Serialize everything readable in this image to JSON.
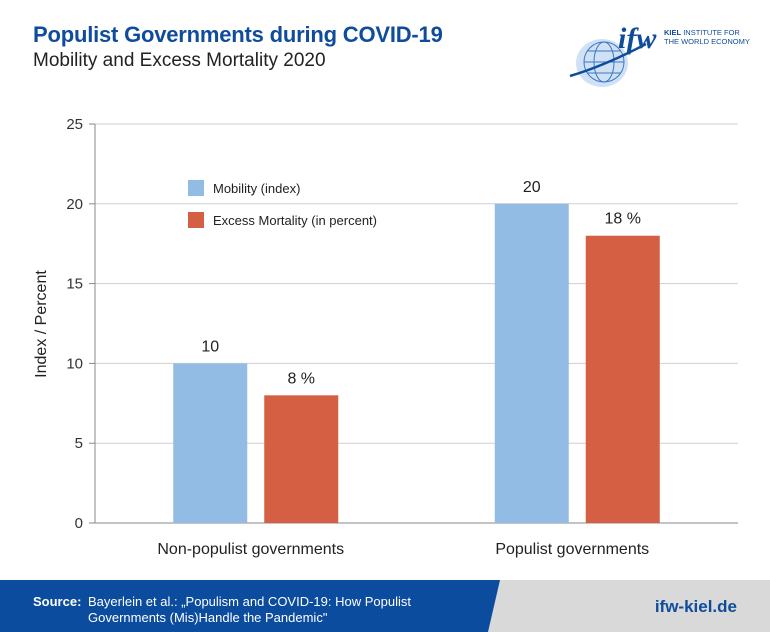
{
  "header": {
    "title": "Populist Governments during COVID-19",
    "subtitle": "Mobility and Excess Mortality 2020"
  },
  "logo": {
    "mark": "ifw",
    "line1": "KIEL INSTITUTE FOR",
    "line1_bold": "KIEL",
    "line1_rest": "INSTITUTE FOR",
    "line2": "THE WORLD ECONOMY",
    "icon": "globe-icon"
  },
  "colors": {
    "mobility": "#92bce3",
    "mortality": "#d45f43",
    "title": "#0f4c9c",
    "footer": "#0c4c9e"
  },
  "chart_data": {
    "type": "bar",
    "categories": [
      "Non-populist governments",
      "Populist governments"
    ],
    "series": [
      {
        "name": "Mobility (index)",
        "values": [
          10,
          20
        ],
        "labels": [
          "10",
          "20"
        ]
      },
      {
        "name": "Excess Mortality (in percent)",
        "values": [
          8,
          18
        ],
        "labels": [
          "8 %",
          "18 %"
        ]
      }
    ],
    "ylabel": "Index / Percent",
    "xlabel": "",
    "ylim": [
      0,
      25
    ],
    "yticks": [
      0,
      5,
      10,
      15,
      20,
      25
    ],
    "grid": true,
    "legend": "top-left"
  },
  "footer": {
    "source_label": "Source:",
    "source_text": "Bayerlein et al.: „Populism and COVID-19: How Populist Governments (Mis)Handle the Pandemic\"",
    "website": "ifw-kiel.de"
  }
}
